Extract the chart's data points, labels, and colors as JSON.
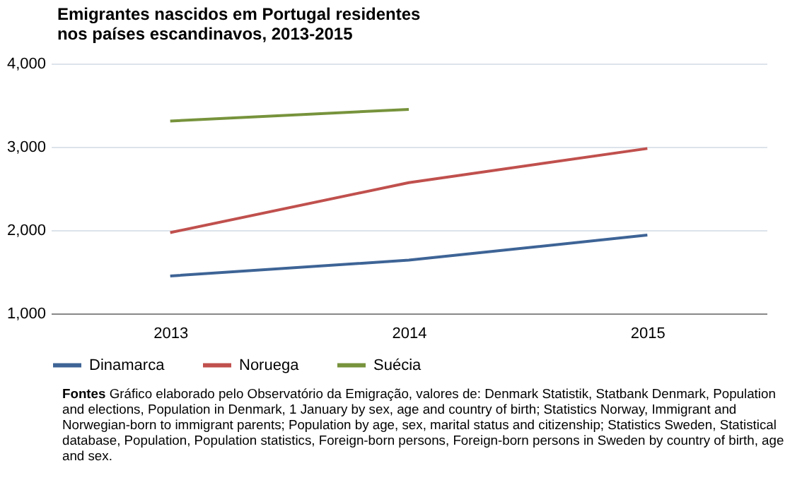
{
  "chart_data": {
    "type": "line",
    "title": "Emigrantes nascidos em Portugal residentes\nnos países escandinavos, 2013-2015",
    "categories": [
      "2013",
      "2014",
      "2015"
    ],
    "series": [
      {
        "name": "Dinamarca",
        "color": "#3e6496",
        "values": [
          1450,
          1640,
          1940
        ]
      },
      {
        "name": "Noruega",
        "color": "#c0504d",
        "values": [
          1970,
          2570,
          2980
        ]
      },
      {
        "name": "Suécia",
        "color": "#77933c",
        "values": [
          3310,
          3450,
          null
        ]
      }
    ],
    "ylim": [
      1000,
      4000
    ],
    "yticks": [
      {
        "value": 1000,
        "label": "1,000"
      },
      {
        "value": 2000,
        "label": "2,000"
      },
      {
        "value": 3000,
        "label": "3,000"
      },
      {
        "value": 4000,
        "label": "4,000"
      }
    ],
    "grid": "y",
    "legend": "bottom",
    "annotations": [
      "Fontes",
      "Gráfico elaborado pelo Observatório da Emigração, valores de: Denmark Statistik, Statbank Denmark, Population and elections, Population in Denmark, 1 January by sex, age and country of birth; Statistics Norway, Immigrant and Norwegian-born to immigrant parents; Population by age, sex, marital status and citizenship; Statistics Sweden, Statistical database, Population, Population statistics, Foreign-born persons, Foreign-born persons in Sweden by country of birth, age and sex."
    ]
  }
}
